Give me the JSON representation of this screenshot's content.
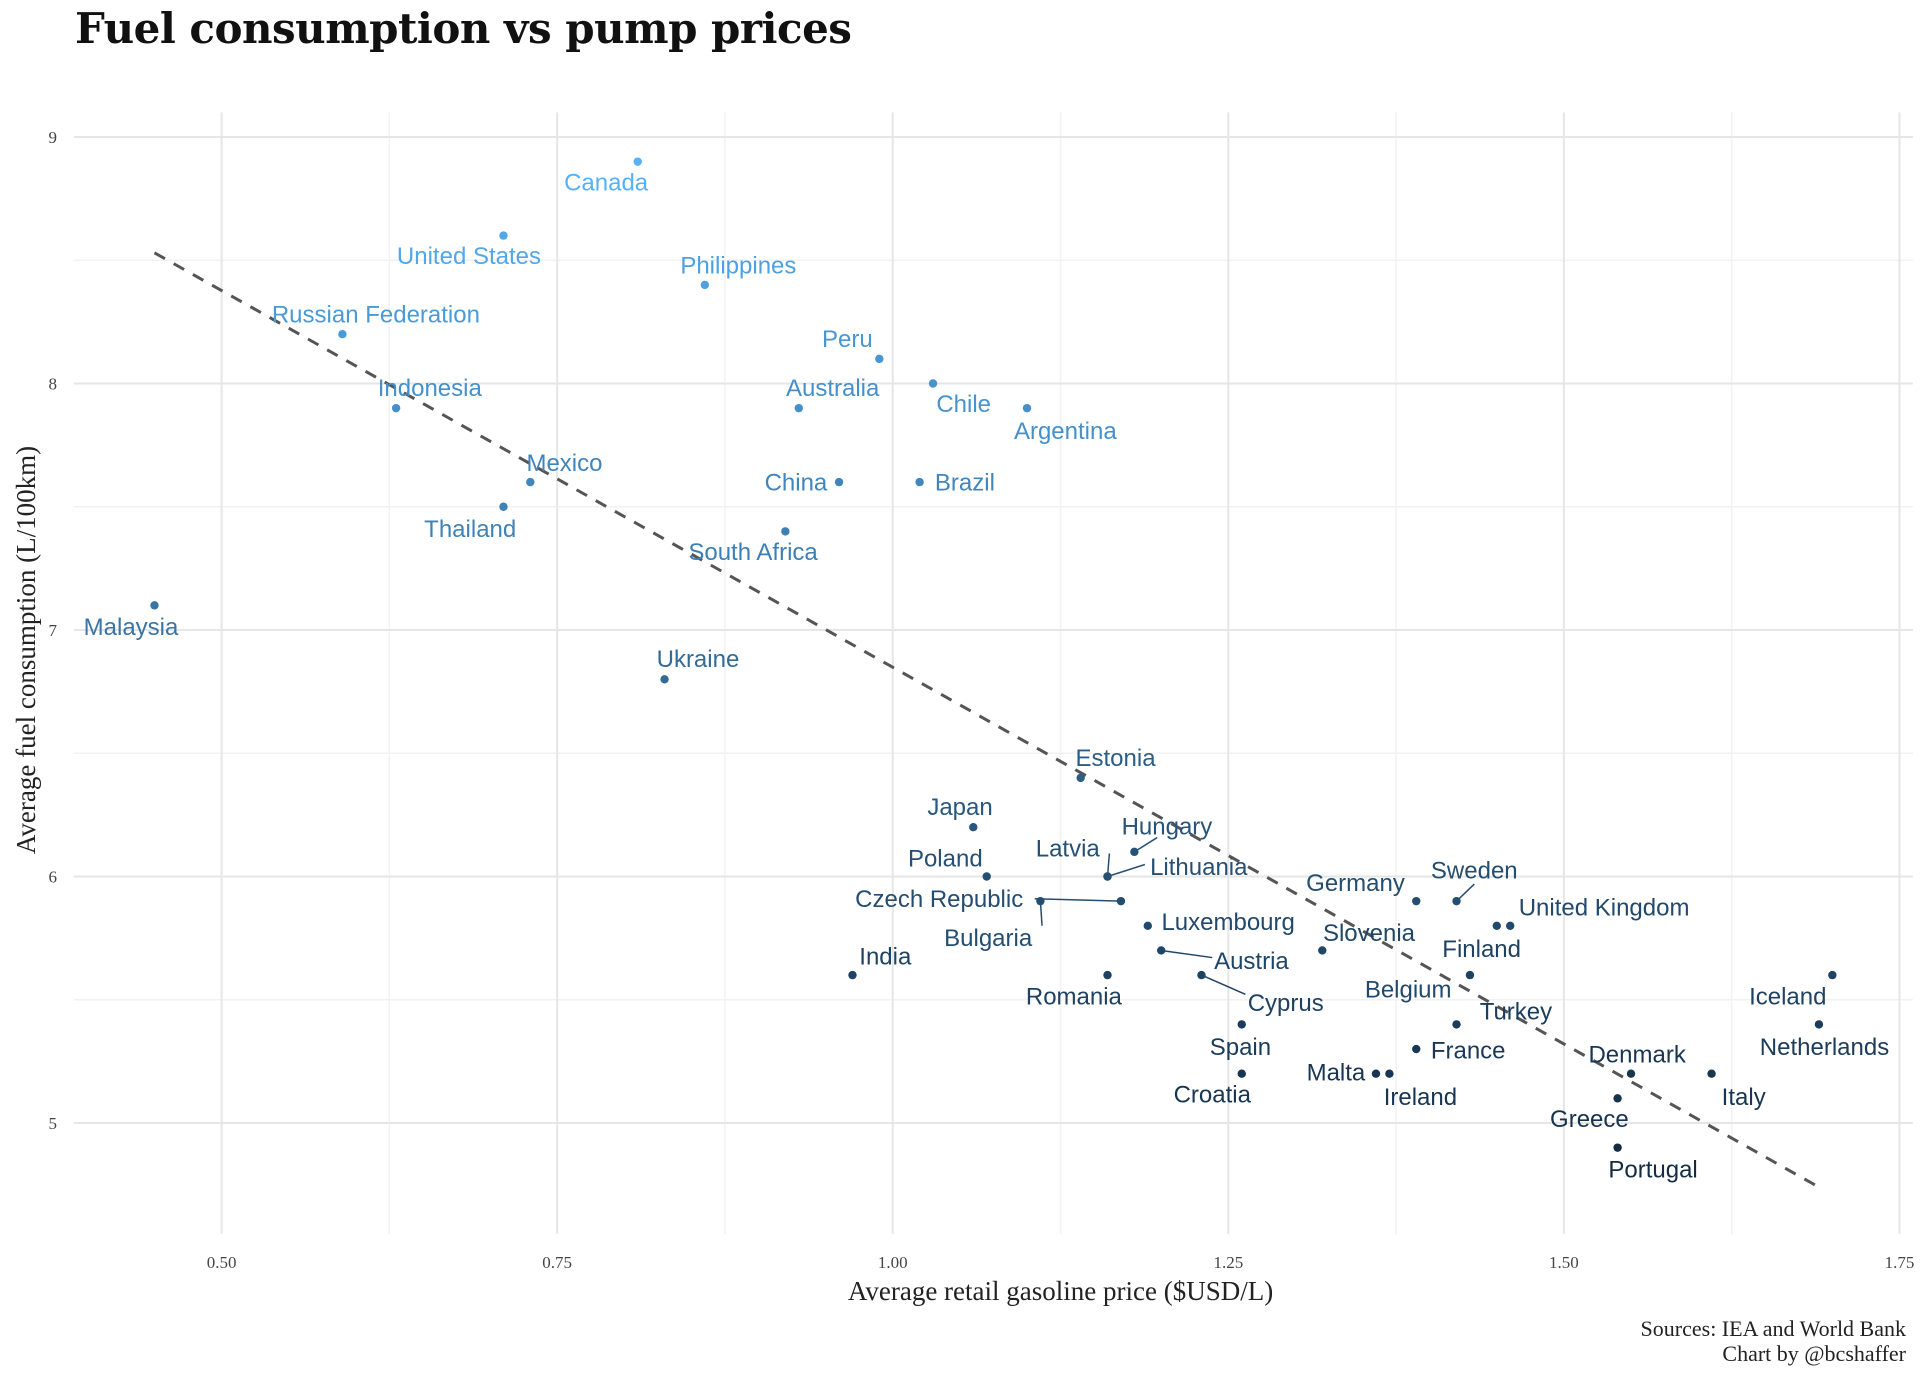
{
  "chart_data": {
    "type": "scatter",
    "title": "Fuel consumption vs pump prices",
    "xlabel": "Average retail gasoline price ($USD/L)",
    "ylabel": "Average fuel consumption (L/100km)",
    "xlim": [
      0.39,
      1.76
    ],
    "ylim": [
      4.55,
      9.1
    ],
    "x_ticks": [
      "0.50",
      "0.75",
      "1.00",
      "1.25",
      "1.50",
      "1.75"
    ],
    "y_ticks": [
      "5",
      "6",
      "7",
      "8",
      "9"
    ],
    "grid": true,
    "legend": "none",
    "color_scale": {
      "low": "#132B43",
      "high": "#56B1F7",
      "mapped_to": "y"
    },
    "trend_line": {
      "style": "dashed",
      "color": "#555555",
      "x": [
        0.45,
        1.69
      ],
      "y": [
        8.53,
        4.74
      ]
    },
    "points": [
      {
        "label": "Canada",
        "x": 0.81,
        "y": 8.9
      },
      {
        "label": "United States",
        "x": 0.71,
        "y": 8.6
      },
      {
        "label": "Philippines",
        "x": 0.86,
        "y": 8.4
      },
      {
        "label": "Russian Federation",
        "x": 0.59,
        "y": 8.2
      },
      {
        "label": "Peru",
        "x": 0.99,
        "y": 8.1
      },
      {
        "label": "Chile",
        "x": 1.03,
        "y": 8.0
      },
      {
        "label": "Indonesia",
        "x": 0.63,
        "y": 7.9
      },
      {
        "label": "Australia",
        "x": 0.93,
        "y": 7.9
      },
      {
        "label": "Argentina",
        "x": 1.1,
        "y": 7.9
      },
      {
        "label": "Mexico",
        "x": 0.73,
        "y": 7.6
      },
      {
        "label": "China",
        "x": 0.96,
        "y": 7.6
      },
      {
        "label": "Brazil",
        "x": 1.02,
        "y": 7.6
      },
      {
        "label": "Thailand",
        "x": 0.71,
        "y": 7.5
      },
      {
        "label": "South Africa",
        "x": 0.92,
        "y": 7.4
      },
      {
        "label": "Malaysia",
        "x": 0.45,
        "y": 7.1
      },
      {
        "label": "Ukraine",
        "x": 0.83,
        "y": 6.8
      },
      {
        "label": "Estonia",
        "x": 1.14,
        "y": 6.4
      },
      {
        "label": "Japan",
        "x": 1.06,
        "y": 6.2
      },
      {
        "label": "Hungary",
        "x": 1.18,
        "y": 6.1
      },
      {
        "label": "Poland",
        "x": 1.07,
        "y": 6.0
      },
      {
        "label": "Latvia",
        "x": 1.16,
        "y": 6.0
      },
      {
        "label": "Lithuania",
        "x": 1.16,
        "y": 6.0
      },
      {
        "label": "Czech Republic",
        "x": 1.17,
        "y": 5.9
      },
      {
        "label": "Bulgaria",
        "x": 1.11,
        "y": 5.9
      },
      {
        "label": "Germany",
        "x": 1.39,
        "y": 5.9
      },
      {
        "label": "Sweden",
        "x": 1.42,
        "y": 5.9
      },
      {
        "label": "Luxembourg",
        "x": 1.19,
        "y": 5.8
      },
      {
        "label": "United Kingdom",
        "x": 1.46,
        "y": 5.8
      },
      {
        "label": "Belgium",
        "x": 1.45,
        "y": 5.8
      },
      {
        "label": "Slovenia",
        "x": 1.32,
        "y": 5.7
      },
      {
        "label": "Austria",
        "x": 1.2,
        "y": 5.7
      },
      {
        "label": "India",
        "x": 0.97,
        "y": 5.6
      },
      {
        "label": "Romania",
        "x": 1.16,
        "y": 5.6
      },
      {
        "label": "Cyprus",
        "x": 1.23,
        "y": 5.6
      },
      {
        "label": "Finland",
        "x": 1.43,
        "y": 5.6
      },
      {
        "label": "Iceland",
        "x": 1.7,
        "y": 5.6
      },
      {
        "label": "Spain",
        "x": 1.26,
        "y": 5.4
      },
      {
        "label": "Turkey",
        "x": 1.42,
        "y": 5.4
      },
      {
        "label": "Netherlands",
        "x": 1.69,
        "y": 5.4
      },
      {
        "label": "France",
        "x": 1.39,
        "y": 5.3
      },
      {
        "label": "Croatia",
        "x": 1.26,
        "y": 5.2
      },
      {
        "label": "Malta",
        "x": 1.36,
        "y": 5.2
      },
      {
        "label": "Ireland",
        "x": 1.37,
        "y": 5.2
      },
      {
        "label": "Denmark",
        "x": 1.55,
        "y": 5.2
      },
      {
        "label": "Italy",
        "x": 1.61,
        "y": 5.2
      },
      {
        "label": "Greece",
        "x": 1.54,
        "y": 5.1
      },
      {
        "label": "Portugal",
        "x": 1.54,
        "y": 4.9
      }
    ],
    "caption": [
      "Sources: IEA and World Bank",
      "Chart by @bcshaffer"
    ]
  }
}
